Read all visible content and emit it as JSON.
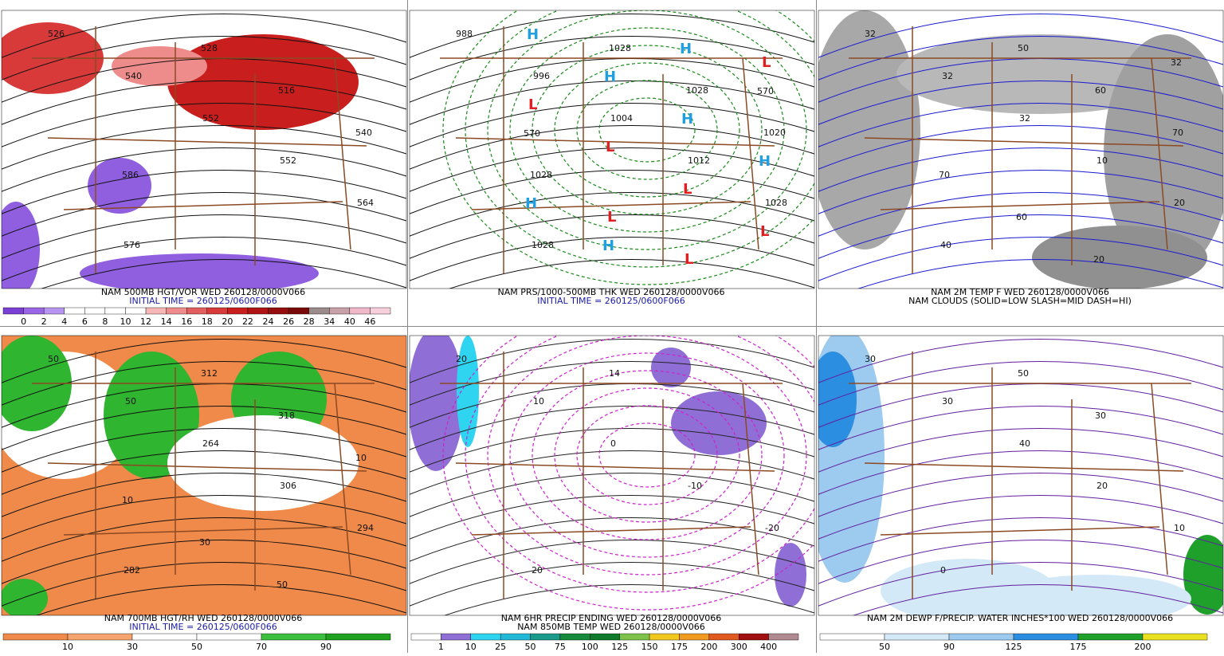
{
  "panels": [
    {
      "caption": [
        {
          "text": "NAM 500MB HGT/VOR WED 260128/0000V066",
          "color": "#000000"
        },
        {
          "text": "INITIAL TIME = 260125/0600F066",
          "color": "#1a1aa8"
        }
      ],
      "colorbar": {
        "labels": [
          "0",
          "2",
          "4",
          "6",
          "8",
          "10",
          "12",
          "14",
          "16",
          "18",
          "20",
          "22",
          "24",
          "26",
          "28",
          "34",
          "40",
          "46"
        ],
        "colors": [
          "#7b3fd6",
          "#9a66e6",
          "#b895f0",
          "#ffffff",
          "#ffffff",
          "#ffffff",
          "#ffffff",
          "#f7b7b7",
          "#ee8c8c",
          "#e35f5f",
          "#d83a3a",
          "#c81e1e",
          "#b01414",
          "#950d0d",
          "#7a0808",
          "#9a8a8a",
          "#c8a0a8",
          "#f0b8c8",
          "#f7d0dc"
        ]
      },
      "map_labels": [
        "526",
        "540",
        "552",
        "552",
        "564",
        "576",
        "528",
        "516",
        "540",
        "586"
      ]
    },
    {
      "caption": [
        {
          "text": "NAM PRS/1000-500MB THK WED 260128/0000V066",
          "color": "#000000"
        },
        {
          "text": "INITIAL TIME = 260125/0600F066",
          "color": "#1a1aa8"
        }
      ],
      "colorbar": null,
      "map_labels": [
        "988",
        "996",
        "1004",
        "1012",
        "1028",
        "1028",
        "1028",
        "1028",
        "1020",
        "1028",
        "L",
        "L",
        "L",
        "L",
        "L",
        "L",
        "L",
        "H",
        "H",
        "H",
        "H",
        "H",
        "H",
        "H",
        "570",
        "570"
      ]
    },
    {
      "caption": [
        {
          "text": "NAM 2M TEMP F WED 260128/0000V066",
          "color": "#000000"
        },
        {
          "text": "NAM CLOUDS (SOLID=LOW SLASH=MID DASH=HI)",
          "color": "#000000"
        }
      ],
      "colorbar": null,
      "map_labels": [
        "32",
        "32",
        "32",
        "10",
        "20",
        "40",
        "50",
        "60",
        "70",
        "70",
        "60",
        "20",
        "32"
      ]
    },
    {
      "caption": [
        {
          "text": "NAM 700MB HGT/RH WED 260128/0000V066",
          "color": "#000000"
        },
        {
          "text": "INITIAL TIME = 260125/0600F066",
          "color": "#1a1aa8"
        }
      ],
      "colorbar": {
        "labels": [
          "10",
          "30",
          "50",
          "70",
          "90"
        ],
        "colors": [
          "#f08a4a",
          "#f4a46c",
          "#ffffff",
          "#ffffff",
          "#3cbf3c",
          "#1fa01f"
        ]
      },
      "map_labels": [
        "50",
        "50",
        "264",
        "306",
        "294",
        "282",
        "312",
        "318",
        "10",
        "10",
        "30",
        "50"
      ]
    },
    {
      "caption": [
        {
          "text": "NAM 6HR PRECIP ENDING WED 260128/0000V066",
          "color": "#000000"
        },
        {
          "text": "NAM 850MB TEMP WED 260128/0000V066",
          "color": "#000000"
        }
      ],
      "colorbar": {
        "labels": [
          "1",
          "10",
          "25",
          "50",
          "75",
          "100",
          "125",
          "150",
          "175",
          "200",
          "300",
          "400"
        ],
        "colors": [
          "#ffffff",
          "#8f6fd6",
          "#2fd4f0",
          "#22b9d9",
          "#1a9a8a",
          "#168a3a",
          "#0e7a2a",
          "#7ec24a",
          "#f0c820",
          "#f09a20",
          "#e05a20",
          "#a01010",
          "#b08a90"
        ]
      },
      "map_labels": [
        "20",
        "10",
        "0",
        "-10",
        "-20",
        "20",
        "14"
      ]
    },
    {
      "caption": [
        {
          "text": "NAM 2M DEWP F/PRECIP. WATER INCHES*100 WED 260128/0000V066",
          "color": "#000000"
        }
      ],
      "colorbar": {
        "labels": [
          "50",
          "90",
          "125",
          "175",
          "200"
        ],
        "colors": [
          "#ffffff",
          "#d4e9f7",
          "#9ccbef",
          "#2c8ee0",
          "#1ea02a",
          "#e8e020"
        ]
      },
      "map_labels": [
        "30",
        "30",
        "40",
        "20",
        "10",
        "0",
        "50",
        "30"
      ]
    }
  ]
}
